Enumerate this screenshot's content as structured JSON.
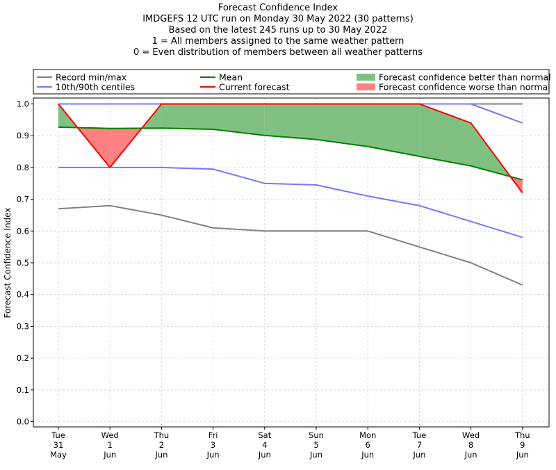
{
  "chart_data": {
    "type": "line",
    "title": "Forecast Confidence Index",
    "subtitle_lines": [
      "IMDGEFS 12 UTC run on Monday 30 May 2022 (30 patterns)",
      "Based on the latest 245 runs up to 30 May 2022",
      "1 = All members assigned to the same weather pattern",
      "0 = Even distribution of members between all weather patterns"
    ],
    "xlabel": "",
    "ylabel": "Forecast Confidence Index",
    "ylim": [
      0,
      1.0
    ],
    "yticks": [
      "0.0",
      "0.1",
      "0.2",
      "0.3",
      "0.4",
      "0.5",
      "0.6",
      "0.7",
      "0.8",
      "0.9",
      "1.0"
    ],
    "categories": [
      [
        "Tue",
        "31",
        "May"
      ],
      [
        "Wed",
        "1",
        "Jun"
      ],
      [
        "Thu",
        "2",
        "Jun"
      ],
      [
        "Fri",
        "3",
        "Jun"
      ],
      [
        "Sat",
        "4",
        "Jun"
      ],
      [
        "Sun",
        "5",
        "Jun"
      ],
      [
        "Mon",
        "6",
        "Jun"
      ],
      [
        "Tue",
        "7",
        "Jun"
      ],
      [
        "Wed",
        "8",
        "Jun"
      ],
      [
        "Thu",
        "9",
        "Jun"
      ]
    ],
    "series": [
      {
        "name": "Record min/max",
        "role": "record_max",
        "color": "#808080",
        "values": [
          1.0,
          1.0,
          1.0,
          1.0,
          1.0,
          1.0,
          1.0,
          1.0,
          1.0,
          1.0
        ]
      },
      {
        "name": "Record min/max",
        "role": "record_min",
        "color": "#808080",
        "values": [
          0.67,
          0.68,
          0.65,
          0.61,
          0.6,
          0.6,
          0.6,
          0.55,
          0.5,
          0.43
        ]
      },
      {
        "name": "10th/90th centiles",
        "role": "p90",
        "color": "#7777ff",
        "values": [
          1.0,
          1.0,
          1.0,
          1.0,
          1.0,
          1.0,
          1.0,
          1.0,
          1.0,
          0.94
        ]
      },
      {
        "name": "10th/90th centiles",
        "role": "p10",
        "color": "#7777ff",
        "values": [
          0.8,
          0.8,
          0.8,
          0.795,
          0.75,
          0.745,
          0.71,
          0.68,
          0.63,
          0.58
        ]
      },
      {
        "name": "Mean",
        "role": "mean",
        "color": "#008000",
        "values": [
          0.927,
          0.923,
          0.924,
          0.92,
          0.901,
          0.888,
          0.866,
          0.835,
          0.805,
          0.761
        ]
      },
      {
        "name": "Current forecast",
        "role": "current",
        "color": "#ff0000",
        "values": [
          1.0,
          0.8,
          1.0,
          1.0,
          1.0,
          1.0,
          1.0,
          1.0,
          0.94,
          0.72
        ]
      }
    ],
    "fills": [
      {
        "name": "Forecast confidence better than normal",
        "color": "#80c080"
      },
      {
        "name": "Forecast confidence worse than normal",
        "color": "#ff8080"
      }
    ],
    "legend": {
      "placement": "top",
      "entries": [
        {
          "label": "Record min/max",
          "kind": "line",
          "color": "#808080"
        },
        {
          "label": "Mean",
          "kind": "line",
          "color": "#008000"
        },
        {
          "label": "Forecast confidence better than normal",
          "kind": "patch",
          "color": "#80c080"
        },
        {
          "label": "10th/90th centiles",
          "kind": "line",
          "color": "#7777ff"
        },
        {
          "label": "Current forecast",
          "kind": "line",
          "color": "#ff0000"
        },
        {
          "label": "Forecast confidence worse than normal",
          "kind": "patch",
          "color": "#ff8080"
        }
      ]
    },
    "grid": true
  }
}
